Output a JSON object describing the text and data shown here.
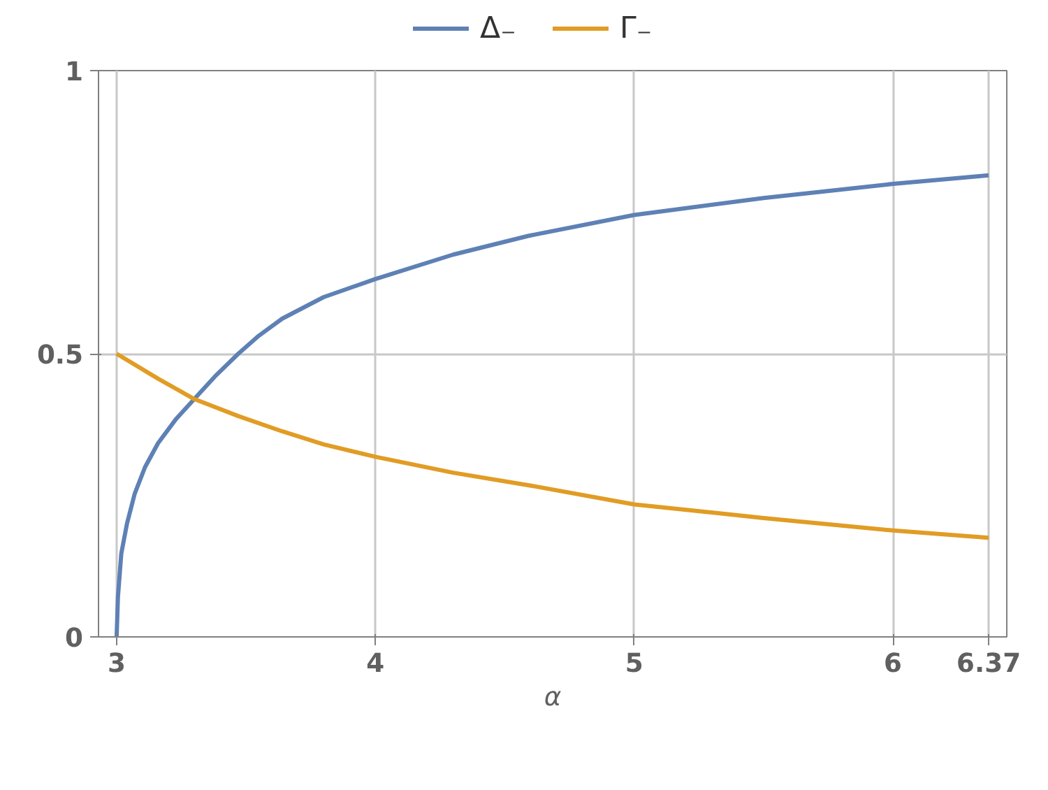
{
  "chart_data": {
    "type": "line",
    "xlabel": "α",
    "xlim": [
      2.93,
      6.44
    ],
    "ylim": [
      0,
      1
    ],
    "xticks": [
      3,
      4,
      5,
      6,
      6.37
    ],
    "yticks": [
      0,
      0.5,
      1
    ],
    "grid": true,
    "legend": "top",
    "line_style": "solid",
    "series": [
      {
        "name": "Δ₋",
        "color": "#5e81b5",
        "x": [
          3.0,
          3.005,
          3.018,
          3.04,
          3.07,
          3.11,
          3.16,
          3.23,
          3.3,
          3.38,
          3.47,
          3.55,
          3.64,
          3.8,
          4.0,
          4.3,
          4.59,
          5.0,
          5.5,
          6.0,
          6.37
        ],
        "values": [
          0,
          0.07,
          0.147,
          0.2,
          0.253,
          0.3,
          0.342,
          0.385,
          0.42,
          0.46,
          0.5,
          0.532,
          0.562,
          0.6,
          0.632,
          0.675,
          0.708,
          0.745,
          0.775,
          0.8,
          0.815
        ]
      },
      {
        "name": "Γ₋",
        "color": "#e19c24",
        "x": [
          3.0,
          3.16,
          3.3,
          3.47,
          3.64,
          3.8,
          4.0,
          4.3,
          4.59,
          5.0,
          5.5,
          6.0,
          6.37
        ],
        "values": [
          0.5,
          0.456,
          0.42,
          0.39,
          0.363,
          0.34,
          0.318,
          0.29,
          0.268,
          0.234,
          0.21,
          0.188,
          0.175
        ]
      }
    ]
  }
}
